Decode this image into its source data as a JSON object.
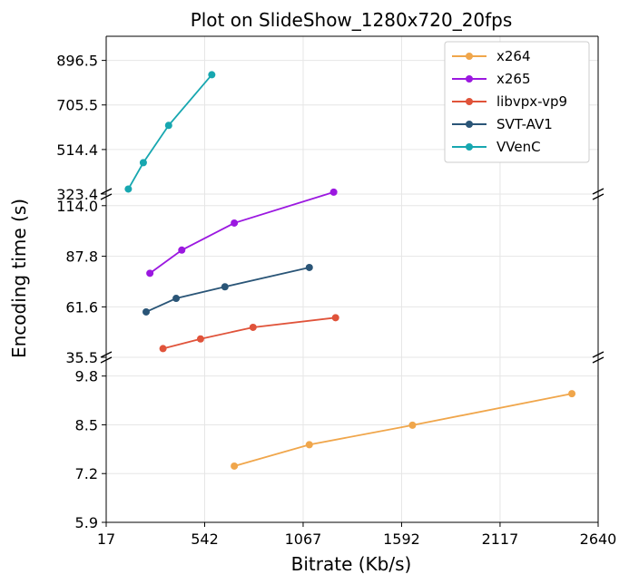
{
  "chart_data": {
    "type": "line",
    "title": "Plot on SlideShow_1280x720_20fps",
    "xlabel": "Bitrate (Kb/s)",
    "ylabel": "Encoding time (s)",
    "xlim": [
      17,
      2640
    ],
    "xticks": [
      "17",
      "542",
      "1067",
      "1592",
      "2117",
      "2640"
    ],
    "xtick_values": [
      17,
      542,
      1067,
      1592,
      2117,
      2640
    ],
    "grid": true,
    "legend_position": "top-right",
    "broken_y_axis": true,
    "panels": [
      {
        "id": "top",
        "ylim": [
          323.4,
          1000
        ],
        "yticks": [
          "323.4",
          "514.4",
          "705.5",
          "896.5"
        ],
        "ytick_values": [
          323.4,
          514.4,
          705.5,
          896.5
        ]
      },
      {
        "id": "middle",
        "ylim": [
          35.5,
          120
        ],
        "yticks": [
          "35.5",
          "61.6",
          "87.8",
          "114.0"
        ],
        "ytick_values": [
          35.5,
          61.6,
          87.8,
          114.0
        ]
      },
      {
        "id": "bottom",
        "ylim": [
          5.9,
          10.3
        ],
        "yticks": [
          "5.9",
          "7.2",
          "8.5",
          "9.8"
        ],
        "ytick_values": [
          5.9,
          7.2,
          8.5,
          9.8
        ]
      }
    ],
    "series": [
      {
        "name": "x264",
        "color": "#f0a64b",
        "panel": "bottom",
        "x": [
          700,
          1100,
          1650,
          2500
        ],
        "y": [
          7.4,
          7.97,
          8.49,
          9.33
        ]
      },
      {
        "name": "x265",
        "color": "#9b18e0",
        "panel": "middle",
        "x": [
          250,
          420,
          700,
          1230
        ],
        "y": [
          79,
          91,
          105,
          121
        ]
      },
      {
        "name": "libvpx-vp9",
        "color": "#e0533a",
        "panel": "middle",
        "x": [
          320,
          520,
          800,
          1240
        ],
        "y": [
          40,
          45,
          51,
          56
        ]
      },
      {
        "name": "SVT-AV1",
        "color": "#2a5577",
        "panel": "middle",
        "x": [
          230,
          390,
          650,
          1100
        ],
        "y": [
          59,
          66,
          72,
          82
        ]
      },
      {
        "name": "VVenC",
        "color": "#17a7b0",
        "panel": "top",
        "x": [
          135,
          215,
          350,
          580
        ],
        "y": [
          345,
          458,
          618,
          835
        ]
      }
    ]
  }
}
